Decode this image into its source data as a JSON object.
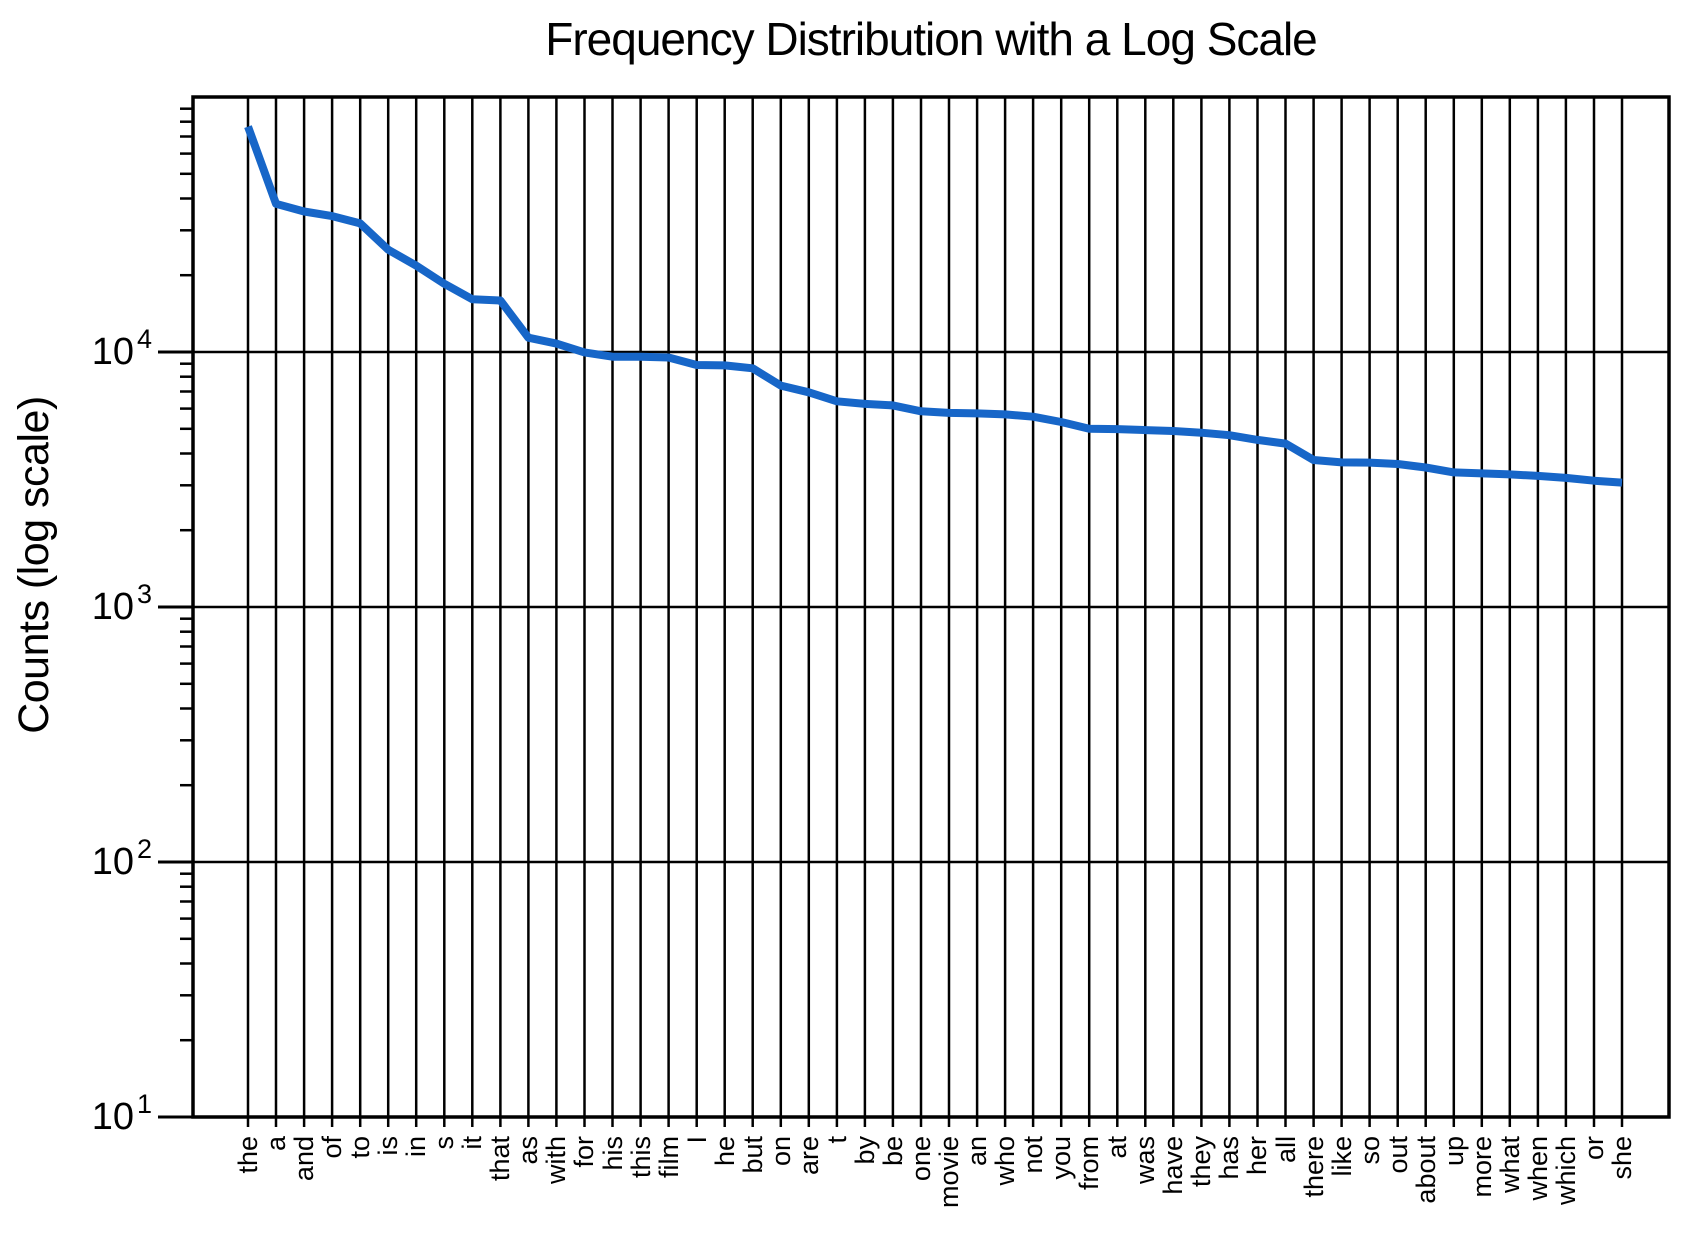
{
  "chart_data": {
    "type": "line",
    "title": "Frequency Distribution with a Log Scale",
    "xlabel": "",
    "ylabel": "Counts (log scale)",
    "yscale": "log",
    "ylim": [
      10,
      100000
    ],
    "y_major_tick_exponents": [
      1,
      2,
      3,
      4
    ],
    "x_tick_rotation": 90,
    "grid": "on",
    "legend": "none",
    "line_color": "#1766C8",
    "categories": [
      "the",
      "a",
      "and",
      "of",
      "to",
      "is",
      "in",
      "s",
      "it",
      "that",
      "as",
      "with",
      "for",
      "his",
      "this",
      "film",
      "I",
      "he",
      "but",
      "on",
      "are",
      "t",
      "by",
      "be",
      "one",
      "movie",
      "an",
      "who",
      "not",
      "you",
      "from",
      "at",
      "was",
      "have",
      "they",
      "has",
      "her",
      "all",
      "there",
      "like",
      "so",
      "out",
      "about",
      "up",
      "more",
      "what",
      "when",
      "which",
      "or",
      "she"
    ],
    "values": [
      76529,
      38106,
      35576,
      34123,
      31937,
      25195,
      21822,
      18513,
      16107,
      15924,
      11378,
      10792,
      9961,
      9587,
      9578,
      9517,
      8889,
      8864,
      8634,
      7385,
      6949,
      6410,
      6261,
      6174,
      5852,
      5771,
      5744,
      5692,
      5577,
      5316,
      4999,
      4986,
      4940,
      4901,
      4825,
      4719,
      4522,
      4373,
      3770,
      3690,
      3683,
      3637,
      3523,
      3373,
      3340,
      3312,
      3268,
      3209,
      3129,
      3075
    ]
  }
}
